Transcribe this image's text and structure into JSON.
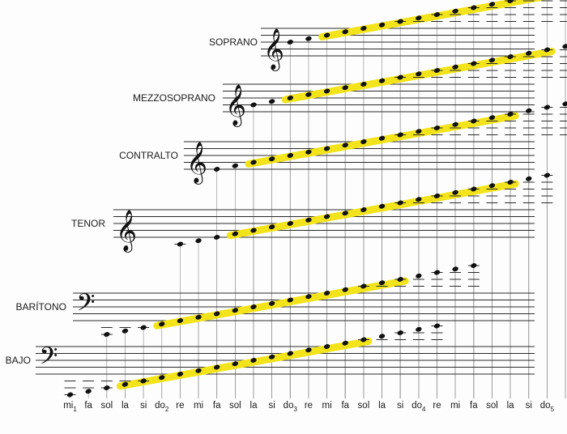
{
  "voices": [
    {
      "id": "soprano",
      "label": "SOPRANO",
      "clef": "treble",
      "octave_mark": false,
      "all_notes": [
        4,
        24
      ],
      "highlight": [
        6,
        21
      ]
    },
    {
      "id": "mezzosoprano",
      "label": "MEZZOSOPRANO",
      "clef": "treble",
      "octave_mark": false,
      "all_notes": [
        2,
        22
      ],
      "highlight": [
        4,
        18
      ]
    },
    {
      "id": "contralto",
      "label": "CONTRALTO",
      "clef": "treble",
      "octave_mark": false,
      "all_notes": [
        0,
        20
      ],
      "highlight": [
        2,
        16
      ]
    },
    {
      "id": "tenor",
      "label": "TENOR",
      "clef": "treble",
      "octave_mark": true,
      "all_notes": [
        -2,
        18
      ],
      "highlight": [
        1,
        16
      ]
    },
    {
      "id": "baritono",
      "label": "BARÍTONO",
      "clef": "bass",
      "octave_mark": false,
      "all_notes": [
        -4,
        16
      ],
      "highlight": [
        -1,
        12
      ]
    },
    {
      "id": "bajo",
      "label": "BAJO",
      "clef": "bass",
      "octave_mark": false,
      "all_notes": [
        -6,
        14
      ],
      "highlight": [
        -3,
        10
      ]
    }
  ],
  "note_names": [
    {
      "name": "mi",
      "sub": "1"
    },
    {
      "name": "fa",
      "sub": ""
    },
    {
      "name": "sol",
      "sub": ""
    },
    {
      "name": "la",
      "sub": ""
    },
    {
      "name": "si",
      "sub": ""
    },
    {
      "name": "do",
      "sub": "2"
    },
    {
      "name": "re",
      "sub": ""
    },
    {
      "name": "mi",
      "sub": ""
    },
    {
      "name": "fa",
      "sub": ""
    },
    {
      "name": "sol",
      "sub": ""
    },
    {
      "name": "la",
      "sub": ""
    },
    {
      "name": "si",
      "sub": ""
    },
    {
      "name": "do",
      "sub": "3"
    },
    {
      "name": "re",
      "sub": ""
    },
    {
      "name": "mi",
      "sub": ""
    },
    {
      "name": "fa",
      "sub": ""
    },
    {
      "name": "sol",
      "sub": ""
    },
    {
      "name": "la",
      "sub": ""
    },
    {
      "name": "si",
      "sub": ""
    },
    {
      "name": "do",
      "sub": "4"
    },
    {
      "name": "re",
      "sub": ""
    },
    {
      "name": "mi",
      "sub": ""
    },
    {
      "name": "fa",
      "sub": ""
    },
    {
      "name": "sol",
      "sub": ""
    },
    {
      "name": "la",
      "sub": ""
    },
    {
      "name": "si",
      "sub": ""
    },
    {
      "name": "do",
      "sub": "5"
    }
  ],
  "colors": {
    "highlight": "#f2e31b",
    "ink": "#111111",
    "staff": "#2a2a2a",
    "guide": "#9a9a9a"
  }
}
